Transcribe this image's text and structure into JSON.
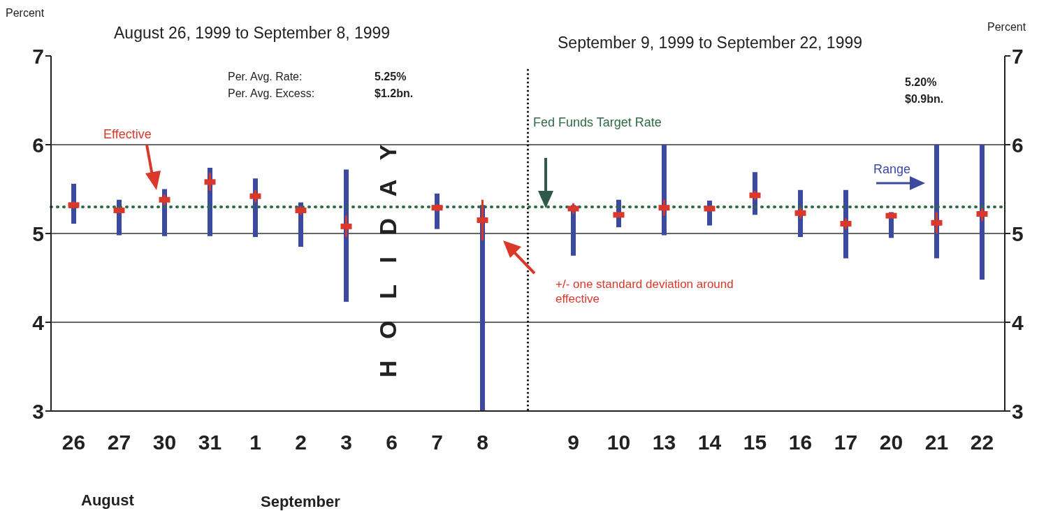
{
  "chart_data": {
    "type": "bar",
    "title": "August 26, 1999 to September 8, 1999",
    "subtitle": "September 9, 1999 to September 22, 1999",
    "ylabel": "Percent",
    "y2label": "Percent",
    "categories": [
      "26",
      "27",
      "30",
      "31",
      "1",
      "2",
      "3",
      "6",
      "7",
      "8",
      null,
      "9",
      "10",
      "13",
      "14",
      "15",
      "16",
      "17",
      "20",
      "21",
      "22"
    ],
    "series": [
      {
        "name": "Range",
        "type": "bar",
        "color": "#3b4a9e",
        "base": [
          5.11,
          4.98,
          4.97,
          4.97,
          4.96,
          4.85,
          4.23,
          null,
          5.05,
          3.0,
          null,
          4.75,
          5.07,
          4.98,
          5.09,
          5.21,
          4.96,
          4.72,
          4.95,
          4.72,
          4.48
        ],
        "values": [
          0.45,
          0.4,
          0.53,
          0.77,
          0.66,
          0.5,
          1.49,
          null,
          0.4,
          2.32,
          null,
          0.57,
          0.31,
          1.02,
          0.28,
          0.48,
          0.53,
          0.77,
          0.29,
          1.28,
          1.52
        ]
      },
      {
        "name": "Effective",
        "type": "scatter",
        "color": "#d9382a",
        "marker": "square",
        "values": [
          5.32,
          5.26,
          5.38,
          5.58,
          5.42,
          5.26,
          5.08,
          null,
          5.29,
          5.15,
          null,
          5.28,
          5.21,
          5.29,
          5.28,
          5.43,
          5.23,
          5.11,
          5.2,
          5.12,
          5.22
        ],
        "errors": [
          0.04,
          0.03,
          0.06,
          0.1,
          0.07,
          0.05,
          0.12,
          null,
          0.04,
          0.23,
          null,
          0.06,
          0.02,
          0.09,
          0.03,
          0.05,
          0.06,
          0.06,
          0.02,
          0.12,
          0.08
        ]
      }
    ],
    "ylim": [
      3,
      7
    ],
    "yticks": [
      3,
      4,
      5,
      6,
      7
    ],
    "y2lim": [
      3,
      7
    ],
    "y2ticks": [
      3,
      4,
      5,
      6,
      7
    ],
    "grid": "y",
    "ref_lines": [
      {
        "axis": "y",
        "value": 5.3,
        "label": "Fed Funds Target Rate",
        "color": "#2e6a45",
        "line_style": "dotted"
      }
    ],
    "annotations": [
      "Per. Avg. Rate:",
      "Per. Avg. Excess:",
      "5.25%",
      "$1.2bn.",
      "5.20%",
      "$0.9bn.",
      "+/- one standard deviation around effective",
      "HOLIDAY",
      "August",
      "September"
    ]
  }
}
